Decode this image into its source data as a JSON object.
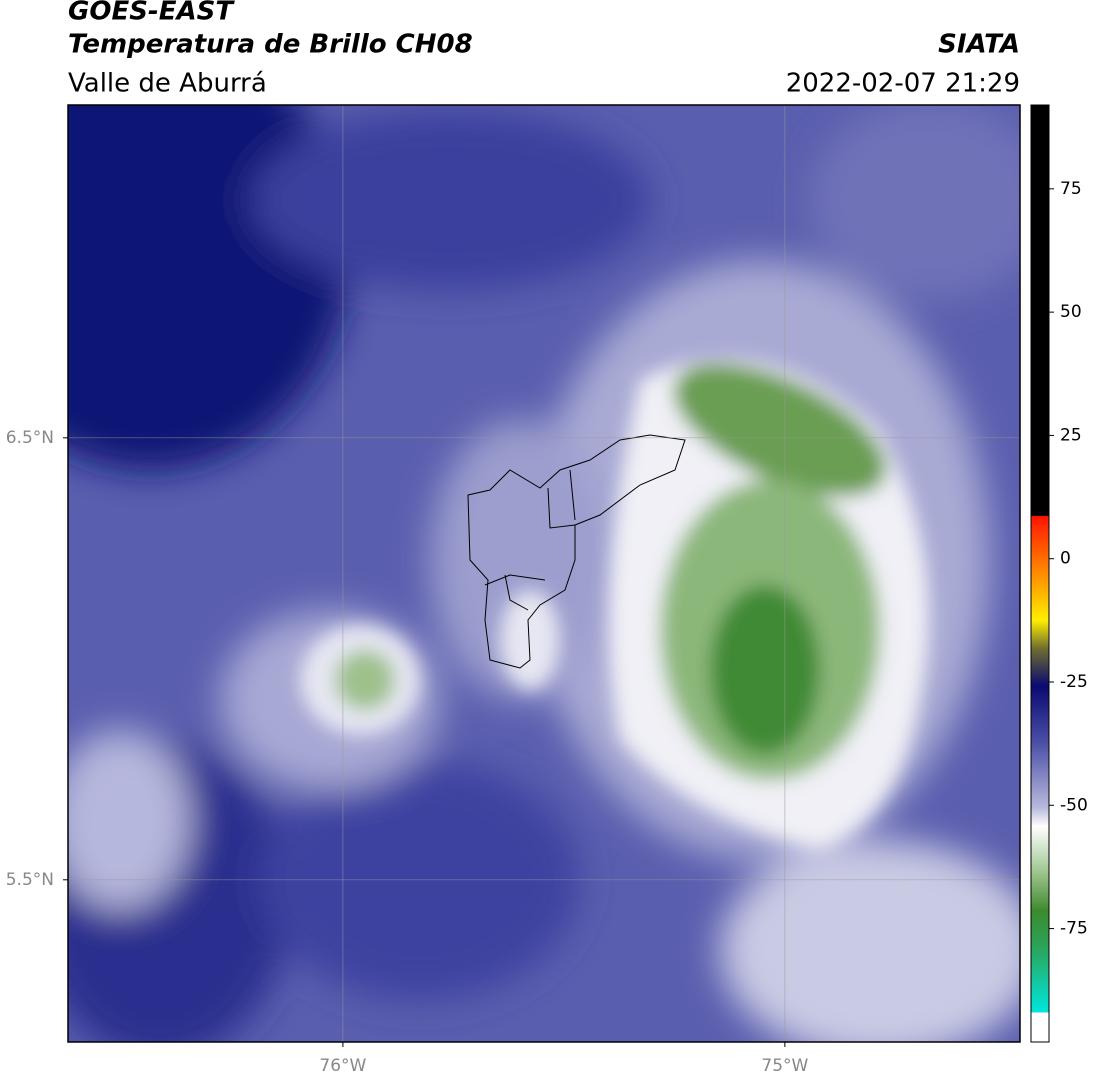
{
  "header": {
    "title": "GOES-EAST",
    "subtitle": "Temperatura de Brillo CH08",
    "region": "Valle de Aburrá",
    "source": "SIATA",
    "datetime": "2022-02-07 21:29"
  },
  "map": {
    "xlim": [
      -76.622,
      -74.468
    ],
    "ylim": [
      5.133,
      7.253
    ],
    "xticks": [
      {
        "value": -76,
        "label": "76°W"
      },
      {
        "value": -75,
        "label": "75°W"
      }
    ],
    "yticks": [
      {
        "value": 6.5,
        "label": "6.5°N"
      },
      {
        "value": 5.5,
        "label": "5.5°N"
      }
    ],
    "grid": true,
    "colorbar": {
      "lim": [
        -98,
        92
      ],
      "ticks": [
        75,
        50,
        25,
        0,
        -25,
        -50,
        -75
      ]
    }
  }
}
